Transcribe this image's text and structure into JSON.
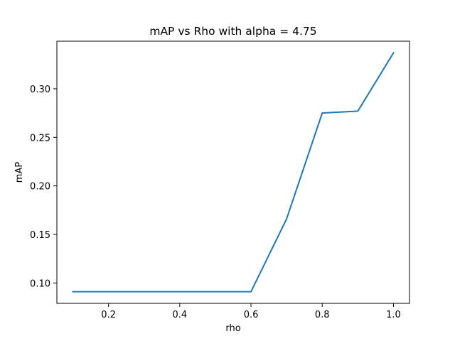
{
  "chart_data": {
    "type": "line",
    "title": "mAP vs Rho with alpha = 4.75",
    "xlabel": "rho",
    "ylabel": "mAP",
    "x": [
      0.1,
      0.2,
      0.3,
      0.4,
      0.5,
      0.6,
      0.7,
      0.8,
      0.9,
      1.0
    ],
    "series": [
      {
        "values": [
          0.091,
          0.091,
          0.091,
          0.091,
          0.091,
          0.091,
          0.166,
          0.275,
          0.277,
          0.337
        ],
        "color": "#1f77b4"
      }
    ],
    "xlim": [
      0.055,
      1.045
    ],
    "ylim": [
      0.079,
      0.349
    ],
    "x_ticks": [
      0.2,
      0.4,
      0.6,
      0.8,
      1.0
    ],
    "x_tick_labels": [
      "0.2",
      "0.4",
      "0.6",
      "0.8",
      "1.0"
    ],
    "y_ticks": [
      0.1,
      0.15,
      0.2,
      0.25,
      0.3
    ],
    "y_tick_labels": [
      "0.10",
      "0.15",
      "0.20",
      "0.25",
      "0.30"
    ],
    "grid": false,
    "legend": "none"
  }
}
